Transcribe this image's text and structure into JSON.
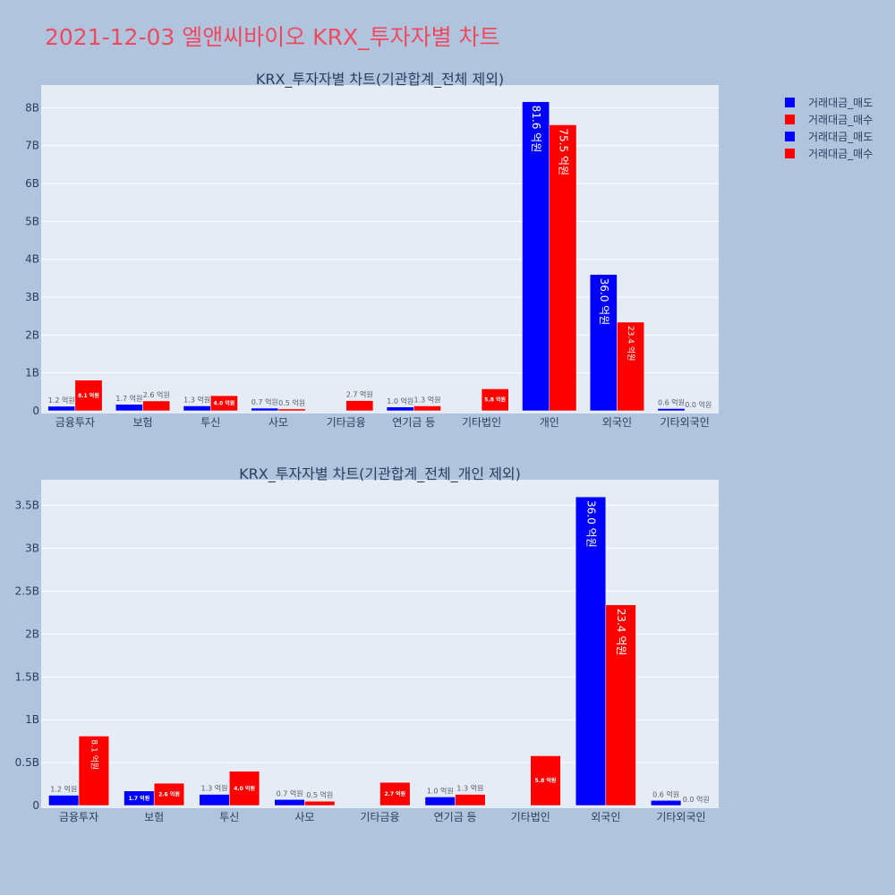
{
  "title": "2021-12-03 엘앤씨바이오 KRX_투자자별 차트",
  "colors": {
    "sell": "#0000ff",
    "buy": "#ff0000",
    "background": "#b0c4de",
    "plot_bg": "#e5ecf6",
    "title": "#ef4a5f"
  },
  "legend": {
    "placement": "top-right",
    "entries": [
      {
        "label": "거래대금_매도",
        "color": "#0000ff"
      },
      {
        "label": "거래대금_매수",
        "color": "#ff0000"
      },
      {
        "label": "거래대금_매도",
        "color": "#0000ff"
      },
      {
        "label": "거래대금_매수",
        "color": "#ff0000"
      }
    ]
  },
  "chart_data": [
    {
      "type": "bar",
      "title": "KRX_투자자별 차트(기관합계_전체 제외)",
      "categories": [
        "금융투자",
        "보험",
        "투신",
        "사모",
        "기타금융",
        "연기금 등",
        "기타법인",
        "개인",
        "외국인",
        "기타외국인"
      ],
      "series": [
        {
          "name": "거래대금_매도",
          "values": [
            0.12,
            0.17,
            0.13,
            0.07,
            0.0,
            0.1,
            0.0,
            8.16,
            3.6,
            0.06
          ],
          "labels": [
            "1.2 억원",
            "1.7 억원",
            "1.3 억원",
            "0.7 억원",
            "",
            "1.0 억원",
            "",
            "81.6 억원",
            "36.0 억원",
            "0.6 억원"
          ]
        },
        {
          "name": "거래대금_매수",
          "values": [
            0.81,
            0.26,
            0.4,
            0.05,
            0.27,
            0.13,
            0.58,
            7.55,
            2.34,
            0.0
          ],
          "labels": [
            "8.1 억원",
            "2.6 억원",
            "4.0 억원",
            "0.5 억원",
            "2.7 억원",
            "1.3 억원",
            "5.8 억원",
            "75.5 억원",
            "23.4 억원",
            "0.0 억원"
          ]
        }
      ],
      "ylim": [
        0,
        8.6
      ],
      "yticks": [
        0,
        1,
        2,
        3,
        4,
        5,
        6,
        7,
        8
      ],
      "ytick_labels": [
        "0",
        "1B",
        "2B",
        "3B",
        "4B",
        "5B",
        "6B",
        "7B",
        "8B"
      ],
      "grid": true
    },
    {
      "type": "bar",
      "title": "KRX_투자자별 차트(기관합계_전체_개인 제외)",
      "categories": [
        "금융투자",
        "보험",
        "투신",
        "사모",
        "기타금융",
        "연기금 등",
        "기타법인",
        "외국인",
        "기타외국인"
      ],
      "series": [
        {
          "name": "거래대금_매도",
          "values": [
            0.12,
            0.17,
            0.13,
            0.07,
            0.0,
            0.1,
            0.0,
            3.6,
            0.06
          ],
          "labels": [
            "1.2 억원",
            "1.7 억원",
            "1.3 억원",
            "0.7 억원",
            "",
            "1.0 억원",
            "",
            "36.0 억원",
            "0.6 억원"
          ]
        },
        {
          "name": "거래대금_매수",
          "values": [
            0.81,
            0.26,
            0.4,
            0.05,
            0.27,
            0.13,
            0.58,
            2.34,
            0.0
          ],
          "labels": [
            "8.1 억원",
            "2.6 억원",
            "4.0 억원",
            "0.5 억원",
            "2.7 억원",
            "1.3 억원",
            "5.8 억원",
            "23.4 억원",
            "0.0 억원"
          ]
        }
      ],
      "ylim": [
        0,
        3.8
      ],
      "yticks": [
        0,
        0.5,
        1,
        1.5,
        2,
        2.5,
        3,
        3.5
      ],
      "ytick_labels": [
        "0",
        "0.5B",
        "1B",
        "1.5B",
        "2B",
        "2.5B",
        "3B",
        "3.5B"
      ],
      "grid": true
    }
  ]
}
